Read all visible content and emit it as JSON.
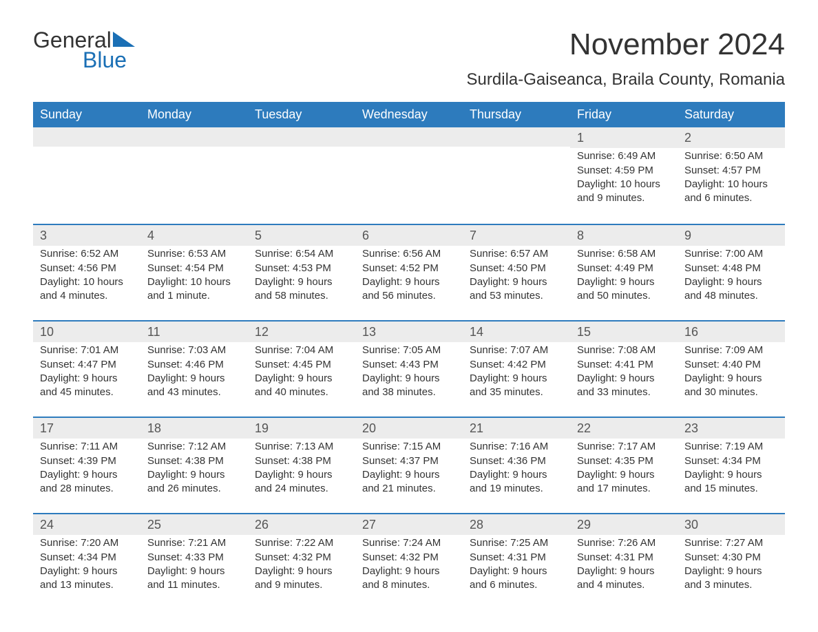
{
  "logo": {
    "general": "General",
    "blue": "Blue"
  },
  "title": "November 2024",
  "location": "Surdila-Gaiseanca, Braila County, Romania",
  "colors": {
    "header_bg": "#2d7bbd",
    "header_text": "#ffffff",
    "daynum_bg": "#ececec",
    "border": "#2d7bbd",
    "text": "#333333",
    "logo_blue": "#1a6fb5"
  },
  "weekdays": [
    "Sunday",
    "Monday",
    "Tuesday",
    "Wednesday",
    "Thursday",
    "Friday",
    "Saturday"
  ],
  "weeks": [
    [
      null,
      null,
      null,
      null,
      null,
      {
        "day": "1",
        "sunrise": "Sunrise: 6:49 AM",
        "sunset": "Sunset: 4:59 PM",
        "daylight": "Daylight: 10 hours and 9 minutes."
      },
      {
        "day": "2",
        "sunrise": "Sunrise: 6:50 AM",
        "sunset": "Sunset: 4:57 PM",
        "daylight": "Daylight: 10 hours and 6 minutes."
      }
    ],
    [
      {
        "day": "3",
        "sunrise": "Sunrise: 6:52 AM",
        "sunset": "Sunset: 4:56 PM",
        "daylight": "Daylight: 10 hours and 4 minutes."
      },
      {
        "day": "4",
        "sunrise": "Sunrise: 6:53 AM",
        "sunset": "Sunset: 4:54 PM",
        "daylight": "Daylight: 10 hours and 1 minute."
      },
      {
        "day": "5",
        "sunrise": "Sunrise: 6:54 AM",
        "sunset": "Sunset: 4:53 PM",
        "daylight": "Daylight: 9 hours and 58 minutes."
      },
      {
        "day": "6",
        "sunrise": "Sunrise: 6:56 AM",
        "sunset": "Sunset: 4:52 PM",
        "daylight": "Daylight: 9 hours and 56 minutes."
      },
      {
        "day": "7",
        "sunrise": "Sunrise: 6:57 AM",
        "sunset": "Sunset: 4:50 PM",
        "daylight": "Daylight: 9 hours and 53 minutes."
      },
      {
        "day": "8",
        "sunrise": "Sunrise: 6:58 AM",
        "sunset": "Sunset: 4:49 PM",
        "daylight": "Daylight: 9 hours and 50 minutes."
      },
      {
        "day": "9",
        "sunrise": "Sunrise: 7:00 AM",
        "sunset": "Sunset: 4:48 PM",
        "daylight": "Daylight: 9 hours and 48 minutes."
      }
    ],
    [
      {
        "day": "10",
        "sunrise": "Sunrise: 7:01 AM",
        "sunset": "Sunset: 4:47 PM",
        "daylight": "Daylight: 9 hours and 45 minutes."
      },
      {
        "day": "11",
        "sunrise": "Sunrise: 7:03 AM",
        "sunset": "Sunset: 4:46 PM",
        "daylight": "Daylight: 9 hours and 43 minutes."
      },
      {
        "day": "12",
        "sunrise": "Sunrise: 7:04 AM",
        "sunset": "Sunset: 4:45 PM",
        "daylight": "Daylight: 9 hours and 40 minutes."
      },
      {
        "day": "13",
        "sunrise": "Sunrise: 7:05 AM",
        "sunset": "Sunset: 4:43 PM",
        "daylight": "Daylight: 9 hours and 38 minutes."
      },
      {
        "day": "14",
        "sunrise": "Sunrise: 7:07 AM",
        "sunset": "Sunset: 4:42 PM",
        "daylight": "Daylight: 9 hours and 35 minutes."
      },
      {
        "day": "15",
        "sunrise": "Sunrise: 7:08 AM",
        "sunset": "Sunset: 4:41 PM",
        "daylight": "Daylight: 9 hours and 33 minutes."
      },
      {
        "day": "16",
        "sunrise": "Sunrise: 7:09 AM",
        "sunset": "Sunset: 4:40 PM",
        "daylight": "Daylight: 9 hours and 30 minutes."
      }
    ],
    [
      {
        "day": "17",
        "sunrise": "Sunrise: 7:11 AM",
        "sunset": "Sunset: 4:39 PM",
        "daylight": "Daylight: 9 hours and 28 minutes."
      },
      {
        "day": "18",
        "sunrise": "Sunrise: 7:12 AM",
        "sunset": "Sunset: 4:38 PM",
        "daylight": "Daylight: 9 hours and 26 minutes."
      },
      {
        "day": "19",
        "sunrise": "Sunrise: 7:13 AM",
        "sunset": "Sunset: 4:38 PM",
        "daylight": "Daylight: 9 hours and 24 minutes."
      },
      {
        "day": "20",
        "sunrise": "Sunrise: 7:15 AM",
        "sunset": "Sunset: 4:37 PM",
        "daylight": "Daylight: 9 hours and 21 minutes."
      },
      {
        "day": "21",
        "sunrise": "Sunrise: 7:16 AM",
        "sunset": "Sunset: 4:36 PM",
        "daylight": "Daylight: 9 hours and 19 minutes."
      },
      {
        "day": "22",
        "sunrise": "Sunrise: 7:17 AM",
        "sunset": "Sunset: 4:35 PM",
        "daylight": "Daylight: 9 hours and 17 minutes."
      },
      {
        "day": "23",
        "sunrise": "Sunrise: 7:19 AM",
        "sunset": "Sunset: 4:34 PM",
        "daylight": "Daylight: 9 hours and 15 minutes."
      }
    ],
    [
      {
        "day": "24",
        "sunrise": "Sunrise: 7:20 AM",
        "sunset": "Sunset: 4:34 PM",
        "daylight": "Daylight: 9 hours and 13 minutes."
      },
      {
        "day": "25",
        "sunrise": "Sunrise: 7:21 AM",
        "sunset": "Sunset: 4:33 PM",
        "daylight": "Daylight: 9 hours and 11 minutes."
      },
      {
        "day": "26",
        "sunrise": "Sunrise: 7:22 AM",
        "sunset": "Sunset: 4:32 PM",
        "daylight": "Daylight: 9 hours and 9 minutes."
      },
      {
        "day": "27",
        "sunrise": "Sunrise: 7:24 AM",
        "sunset": "Sunset: 4:32 PM",
        "daylight": "Daylight: 9 hours and 8 minutes."
      },
      {
        "day": "28",
        "sunrise": "Sunrise: 7:25 AM",
        "sunset": "Sunset: 4:31 PM",
        "daylight": "Daylight: 9 hours and 6 minutes."
      },
      {
        "day": "29",
        "sunrise": "Sunrise: 7:26 AM",
        "sunset": "Sunset: 4:31 PM",
        "daylight": "Daylight: 9 hours and 4 minutes."
      },
      {
        "day": "30",
        "sunrise": "Sunrise: 7:27 AM",
        "sunset": "Sunset: 4:30 PM",
        "daylight": "Daylight: 9 hours and 3 minutes."
      }
    ]
  ]
}
